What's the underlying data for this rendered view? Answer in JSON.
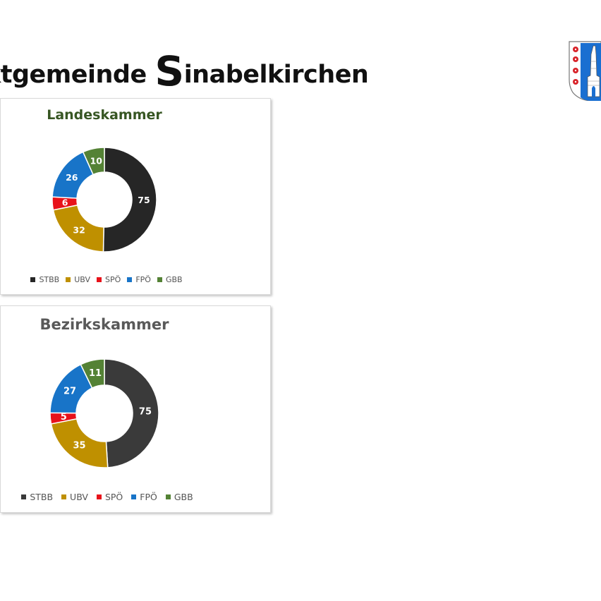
{
  "page": {
    "title_pre": "ktgemeinde ",
    "title_cap": "S",
    "title_post": "inabelkirchen"
  },
  "colors": {
    "STBB_1": "#262626",
    "STBB_2": "#3a3a3a",
    "UBV": "#bf9000",
    "SPÖ": "#e8121a",
    "FPÖ": "#1874c8",
    "GBB": "#548235",
    "title_1": "#375623",
    "title_2": "#595959"
  },
  "chart_data": [
    {
      "type": "pie",
      "title": "Landeskammer",
      "categories": [
        "STBB",
        "UBV",
        "SPÖ",
        "FPÖ",
        "GBB"
      ],
      "values": [
        75,
        32,
        6,
        26,
        10
      ],
      "donut": true,
      "legend": "bottom"
    },
    {
      "type": "pie",
      "title": "Bezirkskammer",
      "categories": [
        "STBB",
        "UBV",
        "SPÖ",
        "FPÖ",
        "GBB"
      ],
      "values": [
        75,
        35,
        5,
        27,
        11
      ],
      "donut": true,
      "legend": "bottom"
    }
  ]
}
